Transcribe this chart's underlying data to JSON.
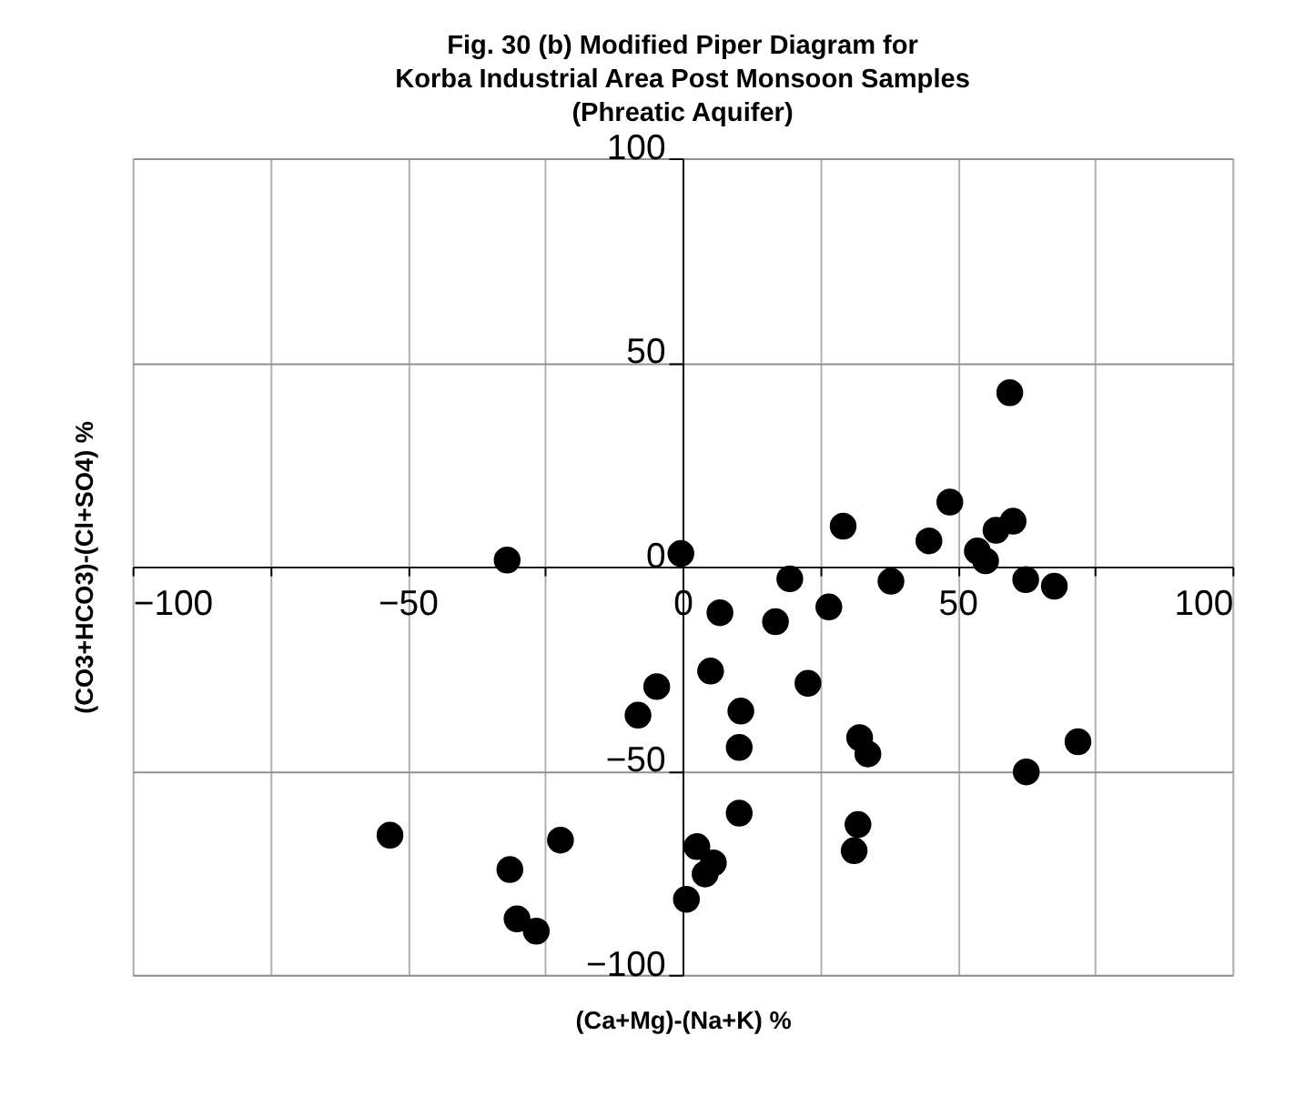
{
  "chart_data": {
    "type": "scatter",
    "title": "Fig. 30 (b) Modified Piper Diagram for\nKorba Industrial Area Post Monsoon Samples\n(Phreatic Aquifer)",
    "xlabel": "(Ca+Mg)-(Na+K) %",
    "ylabel": "(CO3+HCO3)-(Cl+SO4) %",
    "xlim": [
      -100,
      100
    ],
    "ylim": [
      -100,
      100
    ],
    "xticks": [
      -100,
      {
        "value": -75,
        "label": null
      },
      -50,
      {
        "value": -25,
        "label": null
      },
      0,
      {
        "value": 25,
        "label": null
      },
      50,
      {
        "value": 75,
        "label": null
      },
      100
    ],
    "yticks": [
      -100,
      -50,
      0,
      50,
      100
    ],
    "grid": true,
    "marker": "circle",
    "series": [
      {
        "color": "#000000",
        "x": [
          59.5,
          48.6,
          29.2,
          44.8,
          57.0,
          60.1,
          53.6,
          55.1,
          -31.9,
          -0.3,
          19.5,
          37.9,
          62.4,
          67.6,
          6.8,
          16.9,
          26.6,
          5.1,
          -4.7,
          -8.1,
          10.6,
          22.8,
          10.3,
          32.2,
          33.7,
          71.9,
          62.5,
          10.3,
          31.9,
          31.2,
          -53.2,
          -22.2,
          -31.4,
          -30.1,
          -26.6,
          2.6,
          5.6,
          4.1,
          0.7
        ],
        "values": [
          42.6,
          15.8,
          9.9,
          6.3,
          8.9,
          11.1,
          3.8,
          1.4,
          1.6,
          3.2,
          -3.0,
          -3.6,
          -3.2,
          -4.8,
          -11.3,
          -13.5,
          -9.9,
          -25.6,
          -29.4,
          -36.4,
          -35.4,
          -28.6,
          -44.3,
          -41.9,
          -45.9,
          -42.9,
          -50.3,
          -60.4,
          -63.2,
          -69.6,
          -65.8,
          -67.0,
          -74.2,
          -86.3,
          -89.3,
          -68.6,
          -72.6,
          -75.3,
          -81.5
        ]
      }
    ]
  }
}
